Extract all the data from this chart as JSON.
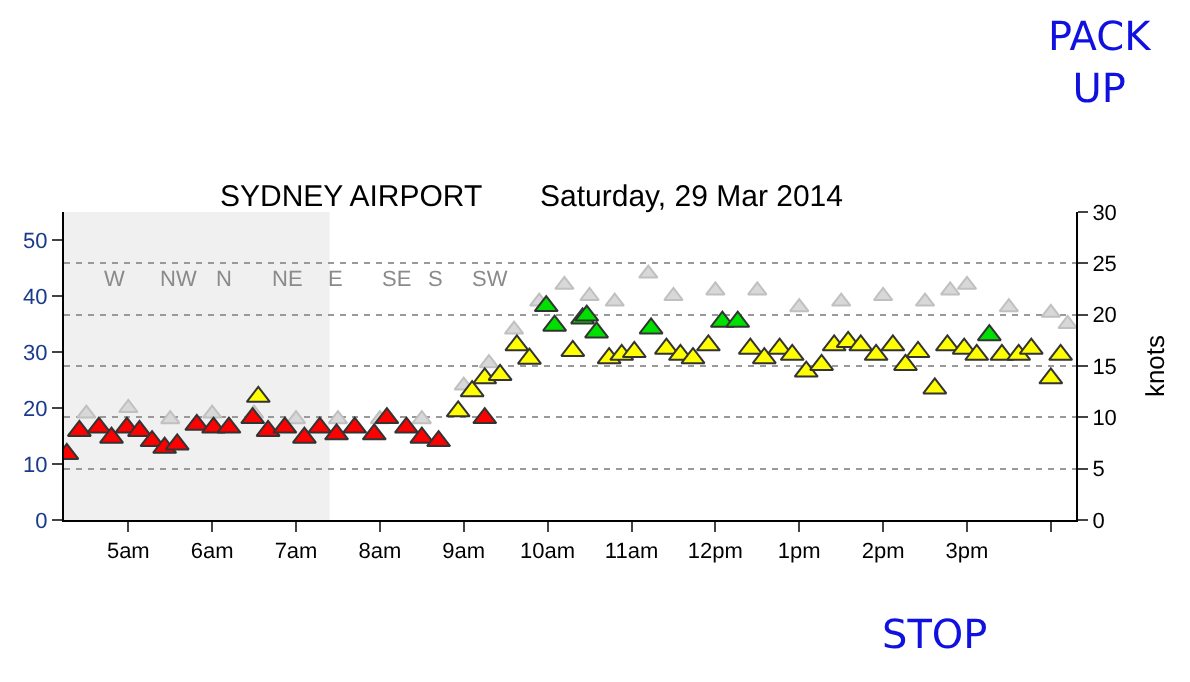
{
  "chart_data": {
    "type": "scatter",
    "title": "SYDNEY AIRPORT",
    "subtitle": "Saturday, 29 Mar 2014",
    "y2label": "knots",
    "x": [
      "2014-03-29T04:16",
      "2014-03-29T04:25",
      "2014-03-29T04:39",
      "2014-03-29T04:48",
      "2014-03-29T04:59",
      "2014-03-29T05:08",
      "2014-03-29T05:17",
      "2014-03-29T05:26",
      "2014-03-29T05:35",
      "2014-03-29T05:49",
      "2014-03-29T06:01",
      "2014-03-29T06:12",
      "2014-03-29T06:29",
      "2014-03-29T06:40",
      "2014-03-29T06:52",
      "2014-03-29T07:06",
      "2014-03-29T07:17",
      "2014-03-29T07:29",
      "2014-03-29T07:42",
      "2014-03-29T07:56",
      "2014-03-29T08:05",
      "2014-03-29T08:19",
      "2014-03-29T08:30",
      "2014-03-29T08:42",
      "2014-03-29T09:15"
    ],
    "series": [
      {
        "color": "#d8d8d8",
        "x": [
          "2014-03-29T04:30",
          "2014-03-29T05:00",
          "2014-03-29T05:30",
          "2014-03-29T06:00",
          "2014-03-29T06:30",
          "2014-03-29T07:00",
          "2014-03-29T07:30",
          "2014-03-29T08:00",
          "2014-03-29T08:30",
          "2014-03-29T09:00",
          "2014-03-29T09:18",
          "2014-03-29T09:36",
          "2014-03-29T09:54",
          "2014-03-29T10:12",
          "2014-03-29T10:30",
          "2014-03-29T10:48",
          "2014-03-29T11:12",
          "2014-03-29T11:30",
          "2014-03-29T12:00",
          "2014-03-29T12:30",
          "2014-03-29T13:00",
          "2014-03-29T13:30",
          "2014-03-29T14:00",
          "2014-03-29T14:30",
          "2014-03-29T14:48",
          "2014-03-29T15:00",
          "2014-03-29T15:30",
          "2014-03-29T16:00",
          "2014-03-29T16:12"
        ],
        "values": [
          19,
          20,
          18,
          19,
          19,
          18,
          18,
          18,
          18,
          24,
          28,
          34,
          39,
          42,
          40,
          39,
          44,
          40,
          41,
          41,
          38,
          39,
          40,
          39,
          41,
          42,
          38,
          37,
          35
        ]
      },
      {
        "color": "#ff0000",
        "values": [
          11.8,
          15.9,
          16.5,
          14.7,
          16.5,
          15.9,
          14.1,
          12.9,
          13.5,
          17,
          16.5,
          16.5,
          18.2,
          15.9,
          16.5,
          14.7,
          16.5,
          15.3,
          16.5,
          15.3,
          18.2,
          16.5,
          14.7,
          14.1,
          18.2
        ]
      },
      {
        "color": "#ffff00",
        "x": [
          "2014-03-29T06:33",
          "2014-03-29T08:56",
          "2014-03-29T09:06",
          "2014-03-29T09:15",
          "2014-03-29T09:26",
          "2014-03-29T09:38",
          "2014-03-29T09:47",
          "2014-03-29T10:18",
          "2014-03-29T10:44",
          "2014-03-29T10:53",
          "2014-03-29T11:02",
          "2014-03-29T11:25",
          "2014-03-29T11:35",
          "2014-03-29T11:44",
          "2014-03-29T11:55",
          "2014-03-29T12:25",
          "2014-03-29T12:35",
          "2014-03-29T12:46",
          "2014-03-29T12:55",
          "2014-03-29T13:05",
          "2014-03-29T13:16",
          "2014-03-29T13:25",
          "2014-03-29T13:35",
          "2014-03-29T13:44",
          "2014-03-29T13:55",
          "2014-03-29T14:07",
          "2014-03-29T14:16",
          "2014-03-29T14:25",
          "2014-03-29T14:37",
          "2014-03-29T14:46",
          "2014-03-29T14:58",
          "2014-03-29T15:07",
          "2014-03-29T15:25",
          "2014-03-29T15:37",
          "2014-03-29T15:46",
          "2014-03-29T16:00",
          "2014-03-29T16:07"
        ],
        "values": [
          22,
          19.4,
          23,
          25.3,
          25.9,
          31.2,
          28.8,
          30.2,
          28.9,
          29.5,
          30,
          30.6,
          29.5,
          28.9,
          31.2,
          30.6,
          28.9,
          30.6,
          29.5,
          26.5,
          27.7,
          31.2,
          31.8,
          31.2,
          29.5,
          31.2,
          27.7,
          30,
          23.5,
          31.2,
          30.6,
          29.5,
          29.5,
          29.5,
          30.6,
          25.3,
          29.5
        ]
      },
      {
        "color": "#00e000",
        "x": [
          "2014-03-29T09:59",
          "2014-03-29T10:05",
          "2014-03-29T10:25",
          "2014-03-29T10:28",
          "2014-03-29T10:35",
          "2014-03-29T11:14",
          "2014-03-29T12:05",
          "2014-03-29T12:16",
          "2014-03-29T15:16"
        ],
        "values": [
          38.2,
          34.7,
          36,
          36.5,
          33.5,
          34.2,
          35.4,
          35.4,
          33
        ]
      }
    ],
    "xlim": [
      "2014-03-29T04:14",
      "2014-03-29T16:18"
    ],
    "xticks": [
      {
        "value": "2014-03-29T05:00",
        "label": "5am"
      },
      {
        "value": "2014-03-29T06:00",
        "label": "6am"
      },
      {
        "value": "2014-03-29T07:00",
        "label": "7am"
      },
      {
        "value": "2014-03-29T08:00",
        "label": "8am"
      },
      {
        "value": "2014-03-29T09:00",
        "label": "9am"
      },
      {
        "value": "2014-03-29T10:00",
        "label": "10am"
      },
      {
        "value": "2014-03-29T11:00",
        "label": "11am"
      },
      {
        "value": "2014-03-29T12:00",
        "label": "12pm"
      },
      {
        "value": "2014-03-29T13:00",
        "label": "1pm"
      },
      {
        "value": "2014-03-29T14:00",
        "label": "2pm"
      },
      {
        "value": "2014-03-29T15:00",
        "label": "3pm"
      },
      {
        "value": "2014-03-29T16:00",
        "label": null
      }
    ],
    "ylim": [
      0,
      55
    ],
    "yticks": [
      0,
      10,
      20,
      30,
      40,
      50
    ],
    "y2lim": [
      0,
      30
    ],
    "y2ticks": [
      0,
      5,
      10,
      15,
      20,
      25,
      30
    ],
    "grid": "y",
    "marker": "triangle",
    "bands": [
      {
        "axis": "x",
        "from": "2014-03-29T04:14",
        "to": "2014-03-29T07:24",
        "color": "#f0f0f0"
      }
    ],
    "annotations": [
      "W",
      "NW",
      "N",
      "NE",
      "E",
      "SE",
      "S",
      "SW",
      "PACK UP",
      "STOP"
    ]
  }
}
